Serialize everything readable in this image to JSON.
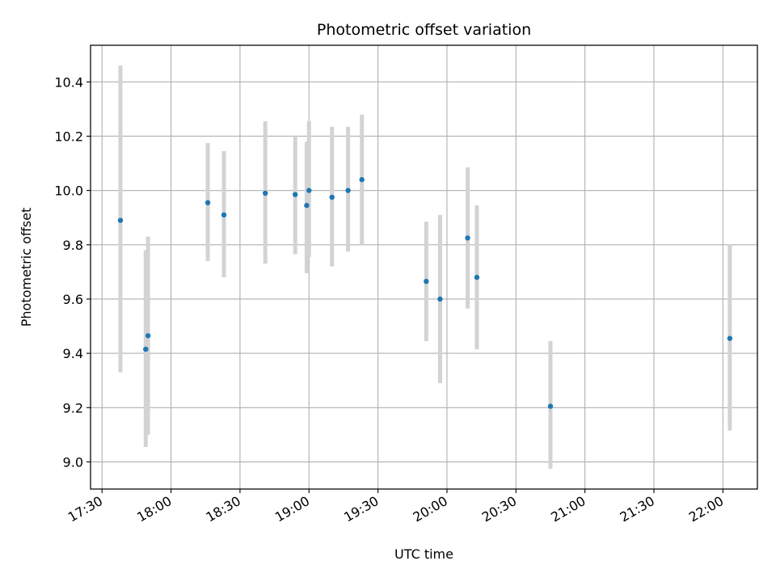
{
  "chart_data": {
    "type": "scatter",
    "title": "Photometric offset variation",
    "xlabel": "UTC time",
    "ylabel": "Photometric offset",
    "xlim": [
      "17:25",
      "22:15"
    ],
    "ylim": [
      8.9,
      10.535
    ],
    "grid": true,
    "x_ticks": [
      "17:30",
      "18:00",
      "18:30",
      "19:00",
      "19:30",
      "20:00",
      "20:30",
      "21:00",
      "21:30",
      "22:00"
    ],
    "y_ticks": [
      9.0,
      9.2,
      9.4,
      9.6,
      9.8,
      10.0,
      10.2,
      10.4
    ],
    "x_tick_rotation": 30,
    "marker_color": "#1f77b4",
    "errorbar_color": "#d3d3d3",
    "points": [
      {
        "x": "17:38",
        "y": 9.89,
        "yerr": [
          9.33,
          10.46
        ]
      },
      {
        "x": "17:49",
        "y": 9.415,
        "yerr": [
          9.055,
          9.78
        ]
      },
      {
        "x": "17:50",
        "y": 9.465,
        "yerr": [
          9.1,
          9.83
        ]
      },
      {
        "x": "18:16",
        "y": 9.955,
        "yerr": [
          9.74,
          10.175
        ]
      },
      {
        "x": "18:23",
        "y": 9.91,
        "yerr": [
          9.68,
          10.145
        ]
      },
      {
        "x": "18:41",
        "y": 9.99,
        "yerr": [
          9.73,
          10.255
        ]
      },
      {
        "x": "18:54",
        "y": 9.985,
        "yerr": [
          9.765,
          10.2
        ]
      },
      {
        "x": "18:59",
        "y": 9.945,
        "yerr": [
          9.695,
          10.18
        ]
      },
      {
        "x": "19:00",
        "y": 10.0,
        "yerr": [
          9.755,
          10.255
        ]
      },
      {
        "x": "19:10",
        "y": 9.975,
        "yerr": [
          9.72,
          10.235
        ]
      },
      {
        "x": "19:17",
        "y": 10.0,
        "yerr": [
          9.775,
          10.235
        ]
      },
      {
        "x": "19:23",
        "y": 10.04,
        "yerr": [
          9.8,
          10.28
        ]
      },
      {
        "x": "19:51",
        "y": 9.665,
        "yerr": [
          9.445,
          9.885
        ]
      },
      {
        "x": "19:57",
        "y": 9.6,
        "yerr": [
          9.29,
          9.91
        ]
      },
      {
        "x": "20:09",
        "y": 9.825,
        "yerr": [
          9.565,
          10.085
        ]
      },
      {
        "x": "20:13",
        "y": 9.68,
        "yerr": [
          9.415,
          9.945
        ]
      },
      {
        "x": "20:45",
        "y": 9.205,
        "yerr": [
          8.975,
          9.445
        ]
      },
      {
        "x": "22:03",
        "y": 9.455,
        "yerr": [
          9.115,
          9.8
        ]
      }
    ]
  }
}
